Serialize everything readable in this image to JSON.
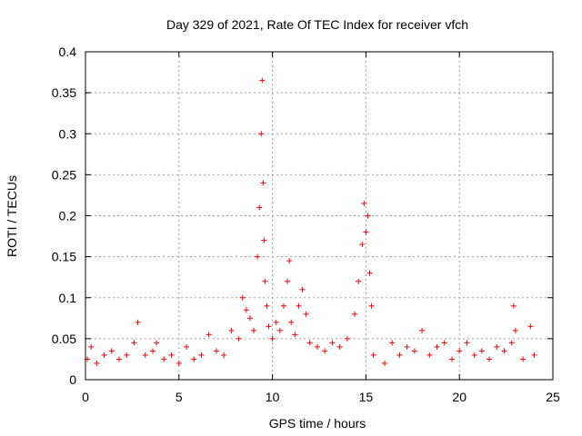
{
  "chart_data": {
    "type": "scatter",
    "title": "Day 329 of 2021, Rate Of TEC Index for receiver vfch",
    "xlabel": "GPS time / hours",
    "ylabel": "ROTI / TECUs",
    "xlim": [
      0,
      25
    ],
    "ylim": [
      0,
      0.4
    ],
    "x_ticks": [
      0,
      5,
      10,
      15,
      20,
      25
    ],
    "x_tick_labels": [
      "0",
      "5",
      "10",
      "15",
      "20",
      "25"
    ],
    "y_ticks": [
      0,
      0.05,
      0.1,
      0.15,
      0.2,
      0.25,
      0.3,
      0.35,
      0.4
    ],
    "y_tick_labels": [
      "0",
      "0.05",
      "0.1",
      "0.15",
      "0.2",
      "0.25",
      "0.3",
      "0.35",
      "0.4"
    ],
    "grid": true,
    "marker": "+",
    "color": "#ff0000",
    "series": [
      {
        "name": "ROTI",
        "x": [
          0.1,
          0.3,
          0.6,
          1.0,
          1.4,
          1.8,
          2.2,
          2.6,
          2.8,
          3.2,
          3.6,
          3.8,
          4.2,
          4.6,
          5.0,
          5.4,
          5.8,
          6.2,
          6.6,
          7.0,
          7.4,
          7.8,
          8.2,
          8.4,
          8.6,
          8.8,
          9.0,
          9.2,
          9.3,
          9.4,
          9.45,
          9.5,
          9.55,
          9.6,
          9.7,
          9.8,
          10.0,
          10.2,
          10.4,
          10.6,
          10.8,
          10.9,
          11.0,
          11.2,
          11.4,
          11.6,
          11.8,
          12.0,
          12.4,
          12.8,
          13.2,
          13.6,
          14.0,
          14.4,
          14.6,
          14.8,
          14.9,
          15.0,
          15.1,
          15.2,
          15.3,
          15.4,
          16.0,
          16.4,
          16.8,
          17.2,
          17.6,
          18.0,
          18.4,
          18.8,
          19.2,
          19.6,
          20.0,
          20.4,
          20.8,
          21.2,
          21.6,
          22.0,
          22.4,
          22.8,
          22.9,
          23.0,
          23.4,
          23.8,
          24.0
        ],
        "y": [
          0.025,
          0.04,
          0.02,
          0.03,
          0.035,
          0.025,
          0.03,
          0.045,
          0.07,
          0.03,
          0.035,
          0.045,
          0.025,
          0.03,
          0.02,
          0.04,
          0.025,
          0.03,
          0.055,
          0.035,
          0.03,
          0.06,
          0.05,
          0.1,
          0.085,
          0.075,
          0.06,
          0.15,
          0.21,
          0.3,
          0.365,
          0.24,
          0.17,
          0.12,
          0.09,
          0.065,
          0.05,
          0.07,
          0.06,
          0.09,
          0.12,
          0.145,
          0.07,
          0.055,
          0.09,
          0.11,
          0.08,
          0.045,
          0.04,
          0.035,
          0.045,
          0.04,
          0.05,
          0.08,
          0.12,
          0.165,
          0.215,
          0.18,
          0.2,
          0.13,
          0.09,
          0.03,
          0.02,
          0.045,
          0.03,
          0.04,
          0.035,
          0.06,
          0.03,
          0.04,
          0.045,
          0.025,
          0.035,
          0.045,
          0.03,
          0.035,
          0.025,
          0.04,
          0.035,
          0.045,
          0.09,
          0.06,
          0.025,
          0.065,
          0.03
        ]
      }
    ]
  }
}
